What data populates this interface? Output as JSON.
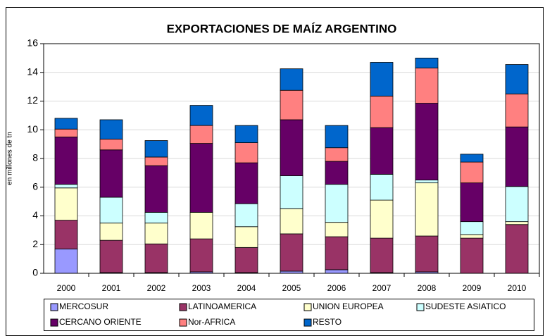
{
  "chart_data": {
    "type": "bar",
    "stacked": true,
    "title": "EXPORTACIONES DE MAÍZ ARGENTINO",
    "y_label": "en millones de tn",
    "categories": [
      "2000",
      "2001",
      "2002",
      "2003",
      "2004",
      "2005",
      "2006",
      "2007",
      "2008",
      "2009",
      "2010"
    ],
    "series": [
      {
        "name": "MERCOSUR",
        "color": "#9999ff",
        "values": [
          1.7,
          0.05,
          0.05,
          0.1,
          0.05,
          0.15,
          0.25,
          0.05,
          0.1,
          0,
          0
        ]
      },
      {
        "name": "LATINOAMERICA",
        "color": "#993366",
        "values": [
          2.0,
          2.25,
          2.0,
          2.3,
          1.75,
          2.6,
          2.3,
          2.4,
          2.5,
          2.45,
          3.4
        ]
      },
      {
        "name": "UNION EUROPEA",
        "color": "#ffffcc",
        "values": [
          2.25,
          1.2,
          1.45,
          1.85,
          1.45,
          1.75,
          1.0,
          2.65,
          3.7,
          0.25,
          0.2
        ]
      },
      {
        "name": "SUDESTE ASIATICO",
        "color": "#ccffff",
        "values": [
          0.25,
          1.8,
          0.75,
          0,
          1.6,
          2.3,
          2.65,
          1.8,
          0.2,
          0.9,
          2.45
        ]
      },
      {
        "name": "CERCANO ORIENTE",
        "color": "#660066",
        "values": [
          3.3,
          3.3,
          3.25,
          4.8,
          2.85,
          3.9,
          1.6,
          3.25,
          5.35,
          2.7,
          4.15
        ]
      },
      {
        "name": "Nor-AFRICA",
        "color": "#ff8080",
        "values": [
          0.55,
          0.75,
          0.6,
          1.25,
          1.4,
          2.05,
          0.95,
          2.2,
          2.45,
          1.45,
          2.3
        ]
      },
      {
        "name": "RESTO",
        "color": "#0066cc",
        "values": [
          0.75,
          1.35,
          1.15,
          1.4,
          1.2,
          1.5,
          1.55,
          2.35,
          0.7,
          0.55,
          2.05
        ]
      }
    ],
    "ylim": [
      0,
      16
    ],
    "yticks": [
      0,
      2,
      4,
      6,
      8,
      10,
      12,
      14,
      16
    ],
    "grid": true,
    "legend": "bottom"
  }
}
